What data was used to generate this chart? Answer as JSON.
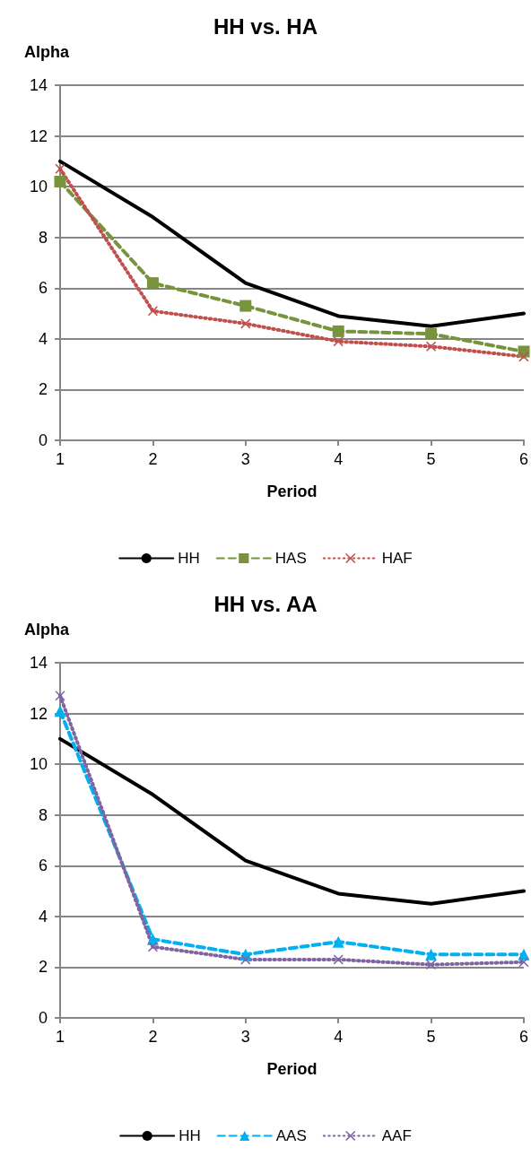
{
  "chart_data": [
    {
      "type": "line",
      "title": "HH vs. HA",
      "xlabel": "Period",
      "ylabel": "Alpha",
      "categories": [
        "1",
        "2",
        "3",
        "4",
        "5",
        "6"
      ],
      "series": [
        {
          "name": "HH",
          "color": "#000000",
          "marker": "none",
          "line_style": "solid",
          "values": [
            11,
            8.8,
            6.2,
            4.9,
            4.5,
            5.0
          ]
        },
        {
          "name": "HAS",
          "color": "#77933c",
          "marker": "square",
          "line_style": "dashed",
          "values": [
            10.2,
            6.2,
            5.3,
            4.3,
            4.2,
            3.5
          ]
        },
        {
          "name": "HAF",
          "color": "#c0504d",
          "marker": "cross",
          "line_style": "dotted",
          "values": [
            10.7,
            5.1,
            4.6,
            3.9,
            3.7,
            3.3
          ]
        }
      ],
      "ylim": [
        0,
        14
      ],
      "yticks": [
        0,
        2,
        4,
        6,
        8,
        10,
        12,
        14
      ],
      "grid": "y",
      "legend": "bottom"
    },
    {
      "type": "line",
      "title": "HH vs. AA",
      "xlabel": "Period",
      "ylabel": "Alpha",
      "categories": [
        "1",
        "2",
        "3",
        "4",
        "5",
        "6"
      ],
      "series": [
        {
          "name": "HH",
          "color": "#000000",
          "marker": "none",
          "line_style": "solid",
          "values": [
            11,
            8.8,
            6.2,
            4.9,
            4.5,
            5.0
          ]
        },
        {
          "name": "AAS",
          "color": "#00b0f0",
          "marker": "triangle",
          "line_style": "dashed",
          "values": [
            12.1,
            3.1,
            2.5,
            3.0,
            2.5,
            2.5
          ]
        },
        {
          "name": "AAF",
          "color": "#8064a2",
          "marker": "cross",
          "line_style": "dotted",
          "values": [
            12.7,
            2.8,
            2.3,
            2.3,
            2.1,
            2.2
          ]
        }
      ],
      "ylim": [
        0,
        14
      ],
      "yticks": [
        0,
        2,
        4,
        6,
        8,
        10,
        12,
        14
      ],
      "grid": "y",
      "legend": "bottom"
    }
  ]
}
